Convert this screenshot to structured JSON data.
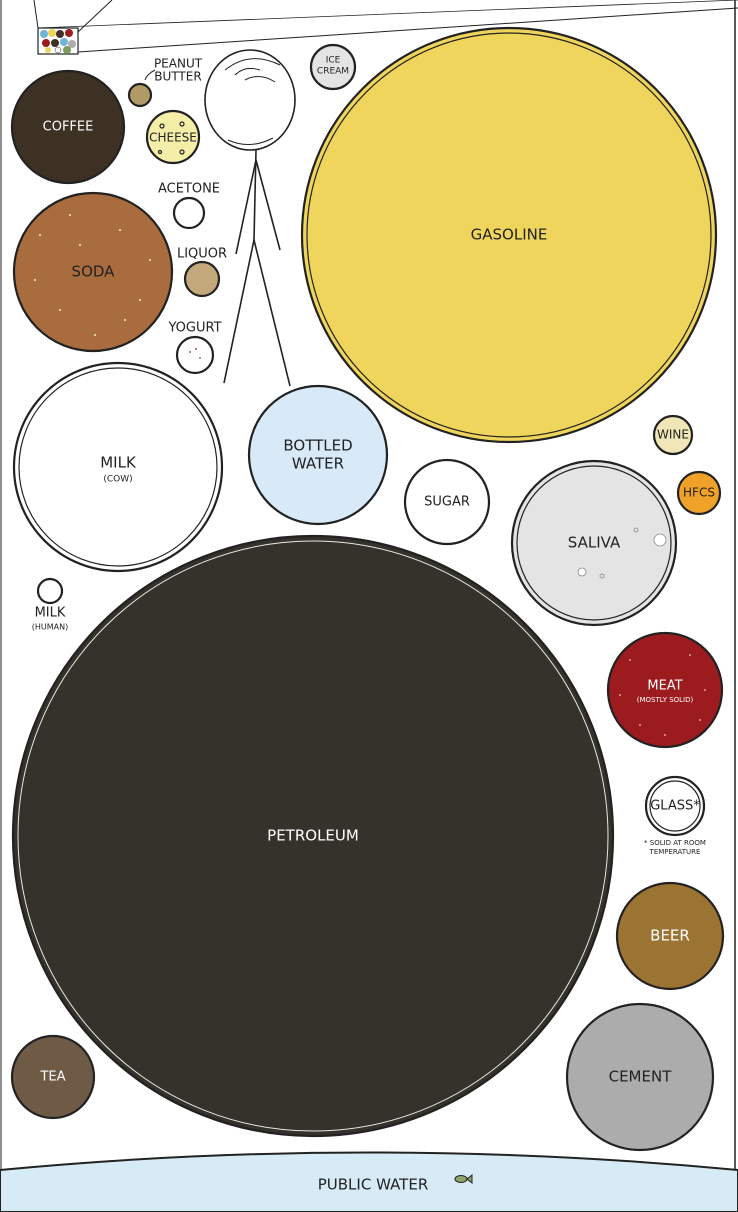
{
  "labels": {
    "coffee": "COFFEE",
    "soda": "SODA",
    "milk_cow": "MILK",
    "milk_cow_sub": "(COW)",
    "milk_human": "MILK",
    "milk_human_sub": "(HUMAN)",
    "peanut_butter_1": "PEANUT",
    "peanut_butter_2": "BUTTER",
    "cheese": "CHEESE",
    "acetone": "ACETONE",
    "liquor": "LIQUOR",
    "yogurt": "YOGURT",
    "ice_cream_1": "ICE",
    "ice_cream_2": "CREAM",
    "gasoline": "GASOLINE",
    "bottled_water_1": "BOTTLED",
    "bottled_water_2": "WATER",
    "sugar": "SUGAR",
    "saliva": "SALIVA",
    "wine": "WINE",
    "hfcs": "HFCS",
    "meat": "MEAT",
    "meat_sub": "(MOSTLY SOLID)",
    "glass": "GLASS*",
    "glass_note_1": "* SOLID AT ROOM",
    "glass_note_2": "TEMPERATURE",
    "petroleum": "PETROLEUM",
    "beer": "BEER",
    "tea": "TEA",
    "cement": "CEMENT",
    "public_water": "PUBLIC WATER"
  },
  "colors": {
    "coffee": "#3d3124",
    "soda": "#a86c3f",
    "milk": "#ffffff",
    "peanut_butter": "#b19a66",
    "cheese": "#f4eea9",
    "liquor": "#c2a87a",
    "gasoline": "#f0d55c",
    "bottled_water": "#d8e9f7",
    "saliva": "#e4e4e4",
    "wine": "#f0e6b8",
    "hfcs": "#f0a12a",
    "meat": "#9c1b1e",
    "petroleum": "#35322c",
    "beer": "#9b7433",
    "tea": "#6e5a45",
    "cement": "#acacac",
    "public_water": "#d6ebf6"
  }
}
